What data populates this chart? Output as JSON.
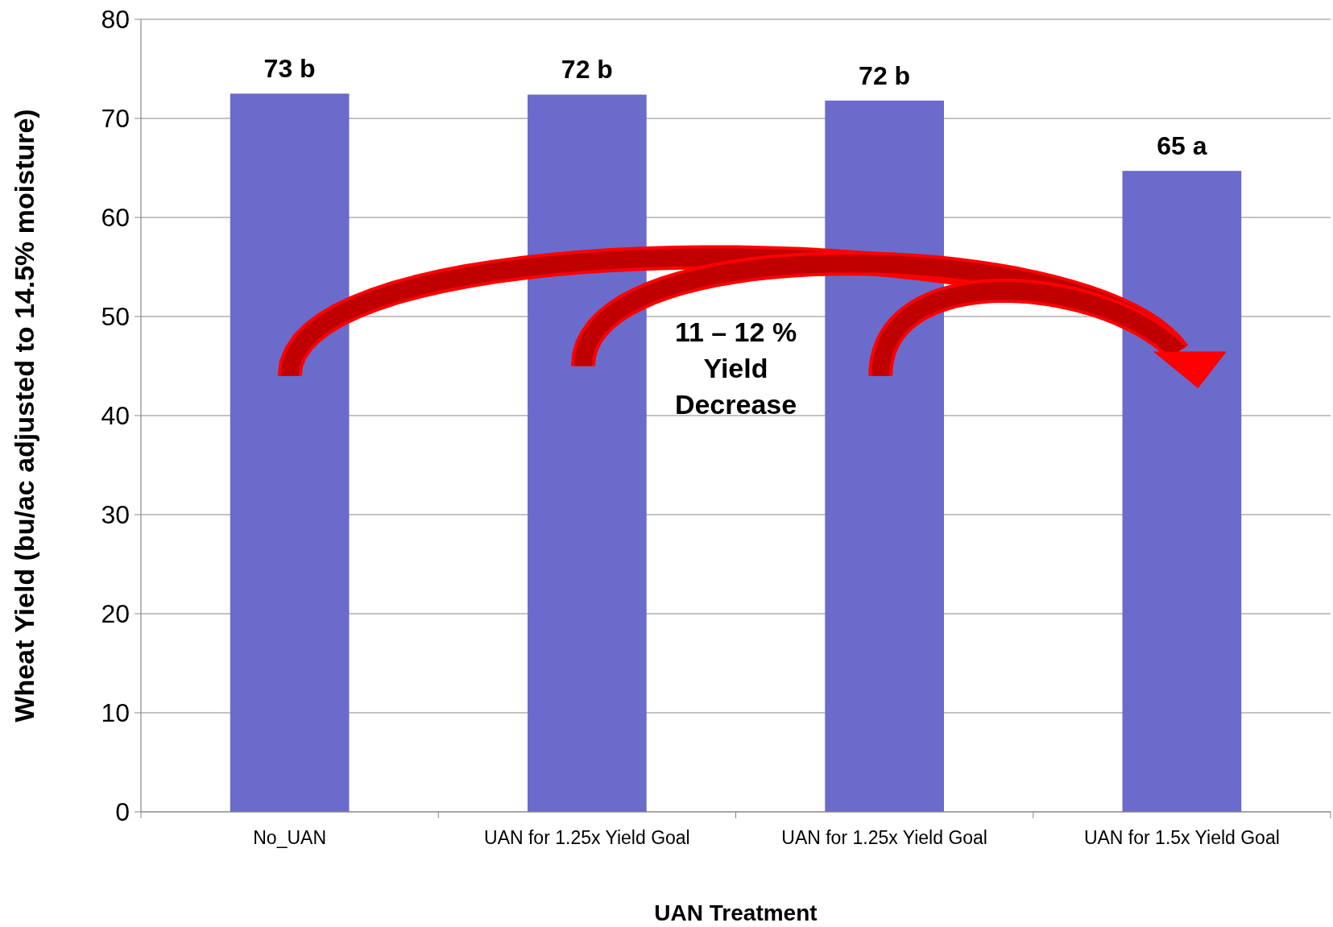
{
  "chart_data": {
    "type": "bar",
    "xlabel": "UAN Treatment",
    "ylabel": "Wheat Yield (bu/ac adjusted to 14.5% moisture)",
    "categories": [
      "No_UAN",
      "UAN for 1.25x Yield Goal",
      "UAN for 1.25x Yield Goal",
      "UAN for 1.5x Yield Goal"
    ],
    "values": [
      72.5,
      72.4,
      71.8,
      64.7
    ],
    "value_labels": [
      "73 b",
      "72 b",
      "72 b",
      "65 a"
    ],
    "color": "#6b6bcc",
    "ylim": [
      0,
      80
    ],
    "yticks": [
      0,
      10,
      20,
      30,
      40,
      50,
      60,
      70,
      80
    ],
    "grid": "y",
    "annotations": [
      "11 – 12 % Yield Decrease"
    ]
  }
}
